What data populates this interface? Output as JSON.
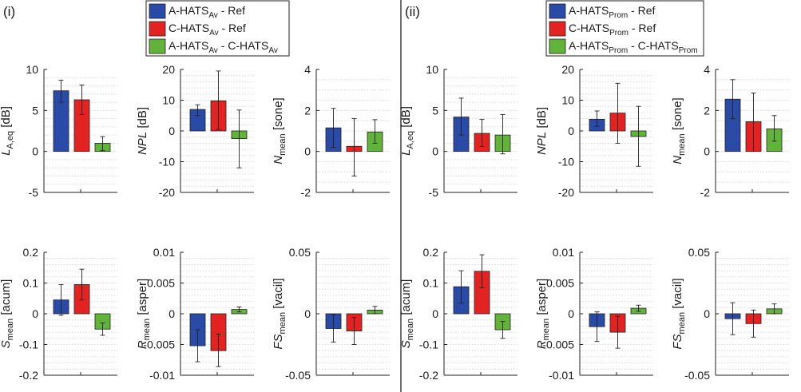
{
  "panels": [
    {
      "label": "(i)"
    },
    {
      "label": "(ii)"
    }
  ],
  "legends": [
    {
      "entries": [
        {
          "base": "A-HATS",
          "sub": "Av",
          "tail": " - Ref",
          "color": "#2a4aa8"
        },
        {
          "base": "C-HATS",
          "sub": "Av",
          "tail": " - Ref",
          "color": "#e32222"
        },
        {
          "base": "A-HATS",
          "sub": "Av",
          "tail": " - C-HATS",
          "sub2": "Av",
          "color": "#62b33a"
        }
      ]
    },
    {
      "entries": [
        {
          "base": "A-HATS",
          "sub": "Prom",
          "tail": " - Ref",
          "color": "#2a4aa8"
        },
        {
          "base": "C-HATS",
          "sub": "Prom",
          "tail": " - Ref",
          "color": "#e32222"
        },
        {
          "base": "A-HATS",
          "sub": "Prom",
          "tail": " - C-HATS",
          "sub2": "Prom",
          "color": "#62b33a"
        }
      ]
    }
  ],
  "chart_data": [
    {
      "type": "bar",
      "panel": "(i)",
      "ylabel": {
        "main": "L",
        "sub": "A,eq",
        "unit": " [dB]",
        "italic": true
      },
      "ylim": [
        -5,
        10
      ],
      "yticks": [
        "10",
        "5",
        "0",
        "-5"
      ],
      "tickvals": [
        10,
        5,
        0,
        -5
      ],
      "minor": 1,
      "values": [
        7.4,
        6.3,
        1.0
      ],
      "err_lo": [
        6.0,
        4.5,
        0.1
      ],
      "err_hi": [
        8.7,
        8.1,
        1.8
      ]
    },
    {
      "type": "bar",
      "panel": "(i)",
      "ylabel": {
        "main": "NPL",
        "unit": " [dB]",
        "italic": true
      },
      "ylim": [
        -20,
        20
      ],
      "yticks": [
        "20",
        "10",
        "0",
        "-10",
        "-20"
      ],
      "tickvals": [
        20,
        10,
        0,
        -10,
        -20
      ],
      "minor": 2,
      "values": [
        7.0,
        9.8,
        -2.5
      ],
      "err_lo": [
        5.0,
        0.5,
        -12.0
      ],
      "err_hi": [
        8.5,
        19.5,
        6.8
      ]
    },
    {
      "type": "bar",
      "panel": "(i)",
      "ylabel": {
        "main": "N",
        "sub": "mean",
        "unit": " [sone]",
        "italic": true
      },
      "ylim": [
        -2,
        4
      ],
      "yticks": [
        "4",
        "2",
        "0",
        "-2"
      ],
      "tickvals": [
        4,
        2,
        0,
        -2
      ],
      "minor": 0.5,
      "values": [
        1.15,
        0.25,
        0.95
      ],
      "err_lo": [
        0.2,
        -1.2,
        0.4
      ],
      "err_hi": [
        2.1,
        1.6,
        1.55
      ]
    },
    {
      "type": "bar",
      "panel": "(ii)",
      "ylabel": {
        "main": "L",
        "sub": "A,eq",
        "unit": " [dB]",
        "italic": true
      },
      "ylim": [
        -5,
        10
      ],
      "yticks": [
        "10",
        "5",
        "0",
        "-5"
      ],
      "tickvals": [
        10,
        5,
        0,
        -5
      ],
      "minor": 1,
      "values": [
        4.2,
        2.2,
        2.0
      ],
      "err_lo": [
        2.0,
        0.6,
        -0.3
      ],
      "err_hi": [
        6.5,
        3.9,
        4.5
      ]
    },
    {
      "type": "bar",
      "panel": "(ii)",
      "ylabel": {
        "main": "NPL",
        "unit": " [dB]",
        "italic": true
      },
      "ylim": [
        -20,
        20
      ],
      "yticks": [
        "20",
        "10",
        "0",
        "-10",
        "-20"
      ],
      "tickvals": [
        20,
        10,
        0,
        -10,
        -20
      ],
      "minor": 2,
      "values": [
        3.8,
        5.8,
        -1.8
      ],
      "err_lo": [
        1.5,
        -4.0,
        -11.5
      ],
      "err_hi": [
        6.5,
        15.5,
        8.0
      ]
    },
    {
      "type": "bar",
      "panel": "(ii)",
      "ylabel": {
        "main": "N",
        "sub": "mean",
        "unit": " [sone]",
        "italic": true
      },
      "ylim": [
        -2,
        4
      ],
      "yticks": [
        "4",
        "2",
        "0",
        "-2"
      ],
      "tickvals": [
        4,
        2,
        0,
        -2
      ],
      "minor": 0.5,
      "values": [
        2.55,
        1.45,
        1.1
      ],
      "err_lo": [
        1.6,
        0.0,
        0.5
      ],
      "err_hi": [
        3.5,
        2.85,
        1.75
      ]
    },
    {
      "type": "bar",
      "panel": "(i)",
      "ylabel": {
        "main": "S",
        "sub": "mean",
        "unit": " [acum]",
        "italic": true
      },
      "ylim": [
        -0.2,
        0.2
      ],
      "yticks": [
        "0.2",
        "0.1",
        "0",
        "-0.1",
        "-0.2"
      ],
      "tickvals": [
        0.2,
        0.1,
        0,
        -0.1,
        -0.2
      ],
      "minor": 0.02,
      "values": [
        0.045,
        0.095,
        -0.05
      ],
      "err_lo": [
        -0.005,
        0.045,
        -0.07
      ],
      "err_hi": [
        0.095,
        0.145,
        -0.03
      ]
    },
    {
      "type": "bar",
      "panel": "(i)",
      "ylabel": {
        "main": "R",
        "sub": "mean",
        "unit": " [asper]",
        "italic": true
      },
      "ylim": [
        -0.01,
        0.01
      ],
      "yticks": [
        "0.01",
        "0.005",
        "0",
        "-0.005",
        "-0.01"
      ],
      "tickvals": [
        0.01,
        0.005,
        0,
        -0.005,
        -0.01
      ],
      "minor": 0.001,
      "values": [
        -0.0052,
        -0.006,
        0.0007
      ],
      "err_lo": [
        -0.0078,
        -0.0086,
        0.0003
      ],
      "err_hi": [
        -0.0026,
        -0.0033,
        0.0011
      ]
    },
    {
      "type": "bar",
      "panel": "(i)",
      "ylabel": {
        "main": "FS",
        "sub": "mean",
        "unit": " [vacil]",
        "italic": true
      },
      "ylim": [
        -0.05,
        0.05
      ],
      "yticks": [
        "0.05",
        "0",
        "-0.05"
      ],
      "tickvals": [
        0.05,
        0,
        -0.05
      ],
      "minor": 0.005,
      "values": [
        -0.012,
        -0.014,
        0.003
      ],
      "err_lo": [
        -0.023,
        -0.025,
        0.0
      ],
      "err_hi": [
        -0.001,
        -0.003,
        0.006
      ]
    },
    {
      "type": "bar",
      "panel": "(ii)",
      "ylabel": {
        "main": "S",
        "sub": "mean",
        "unit": " [acum]",
        "italic": true
      },
      "ylim": [
        -0.2,
        0.2
      ],
      "yticks": [
        "0.2",
        "0.1",
        "0",
        "-0.1",
        "-0.2"
      ],
      "tickvals": [
        0.2,
        0.1,
        0,
        -0.1,
        -0.2
      ],
      "minor": 0.02,
      "values": [
        0.088,
        0.138,
        -0.052
      ],
      "err_lo": [
        0.035,
        0.085,
        -0.08
      ],
      "err_hi": [
        0.14,
        0.192,
        -0.025
      ]
    },
    {
      "type": "bar",
      "panel": "(ii)",
      "ylabel": {
        "main": "R",
        "sub": "mean",
        "unit": " [asper]",
        "italic": true
      },
      "ylim": [
        -0.01,
        0.01
      ],
      "yticks": [
        "0.01",
        "0.005",
        "0",
        "-0.005",
        "-0.01"
      ],
      "tickvals": [
        0.01,
        0.005,
        0,
        -0.005,
        -0.01
      ],
      "minor": 0.001,
      "values": [
        -0.0021,
        -0.003,
        0.0009
      ],
      "err_lo": [
        -0.0045,
        -0.0056,
        0.0004
      ],
      "err_hi": [
        0.0003,
        -0.0004,
        0.0014
      ]
    },
    {
      "type": "bar",
      "panel": "(ii)",
      "ylabel": {
        "main": "FS",
        "sub": "mean",
        "unit": " [vacil]",
        "italic": true
      },
      "ylim": [
        -0.05,
        0.05
      ],
      "yticks": [
        "0.05",
        "0",
        "-0.05"
      ],
      "tickvals": [
        0.05,
        0,
        -0.05
      ],
      "minor": 0.005,
      "values": [
        -0.004,
        -0.008,
        0.004
      ],
      "err_lo": [
        -0.017,
        -0.019,
        0.0
      ],
      "err_hi": [
        0.009,
        0.003,
        0.008
      ]
    }
  ]
}
